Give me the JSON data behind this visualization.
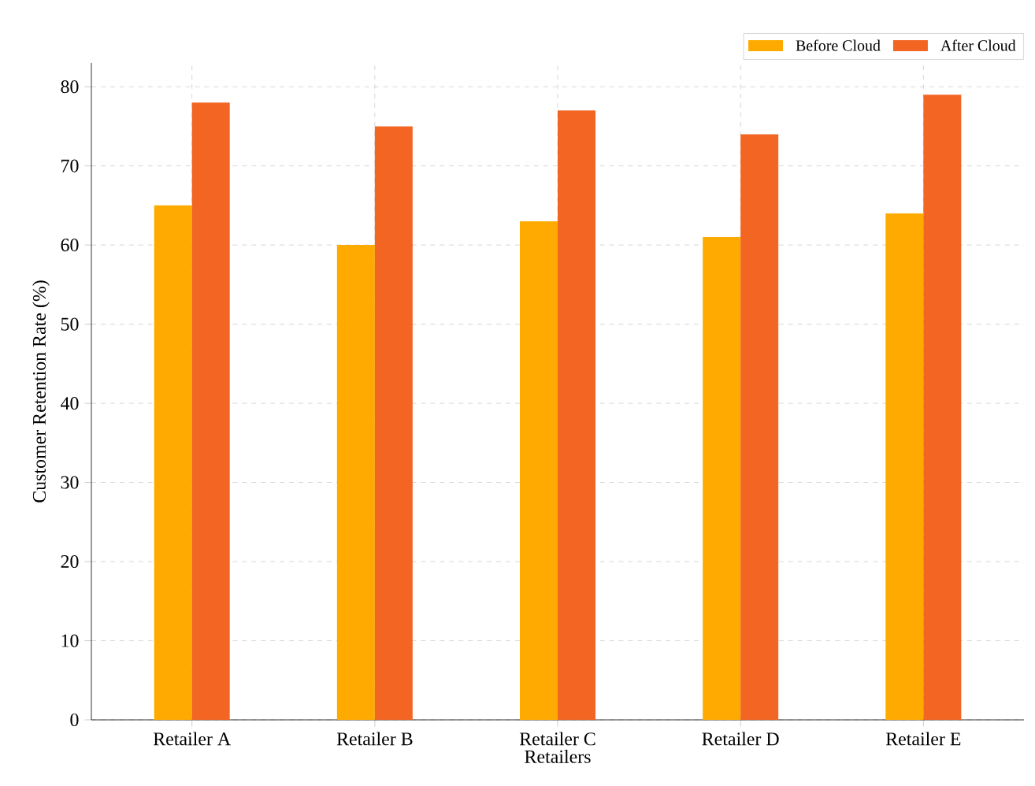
{
  "chart_data": {
    "type": "bar",
    "xlabel": "Retailers",
    "ylabel": "Customer Retention Rate (%)",
    "categories": [
      "Retailer A",
      "Retailer B",
      "Retailer C",
      "Retailer D",
      "Retailer E"
    ],
    "series": [
      {
        "name": "Before Cloud",
        "color": "#ffaa00",
        "values": [
          65,
          60,
          63,
          61,
          64
        ]
      },
      {
        "name": "After Cloud",
        "color": "#f26522",
        "values": [
          78,
          75,
          77,
          74,
          79
        ]
      }
    ],
    "ylim": [
      0,
      83
    ],
    "yticks": [
      0,
      10,
      20,
      30,
      40,
      50,
      60,
      70,
      80
    ],
    "grid": true,
    "legend": "top right"
  }
}
